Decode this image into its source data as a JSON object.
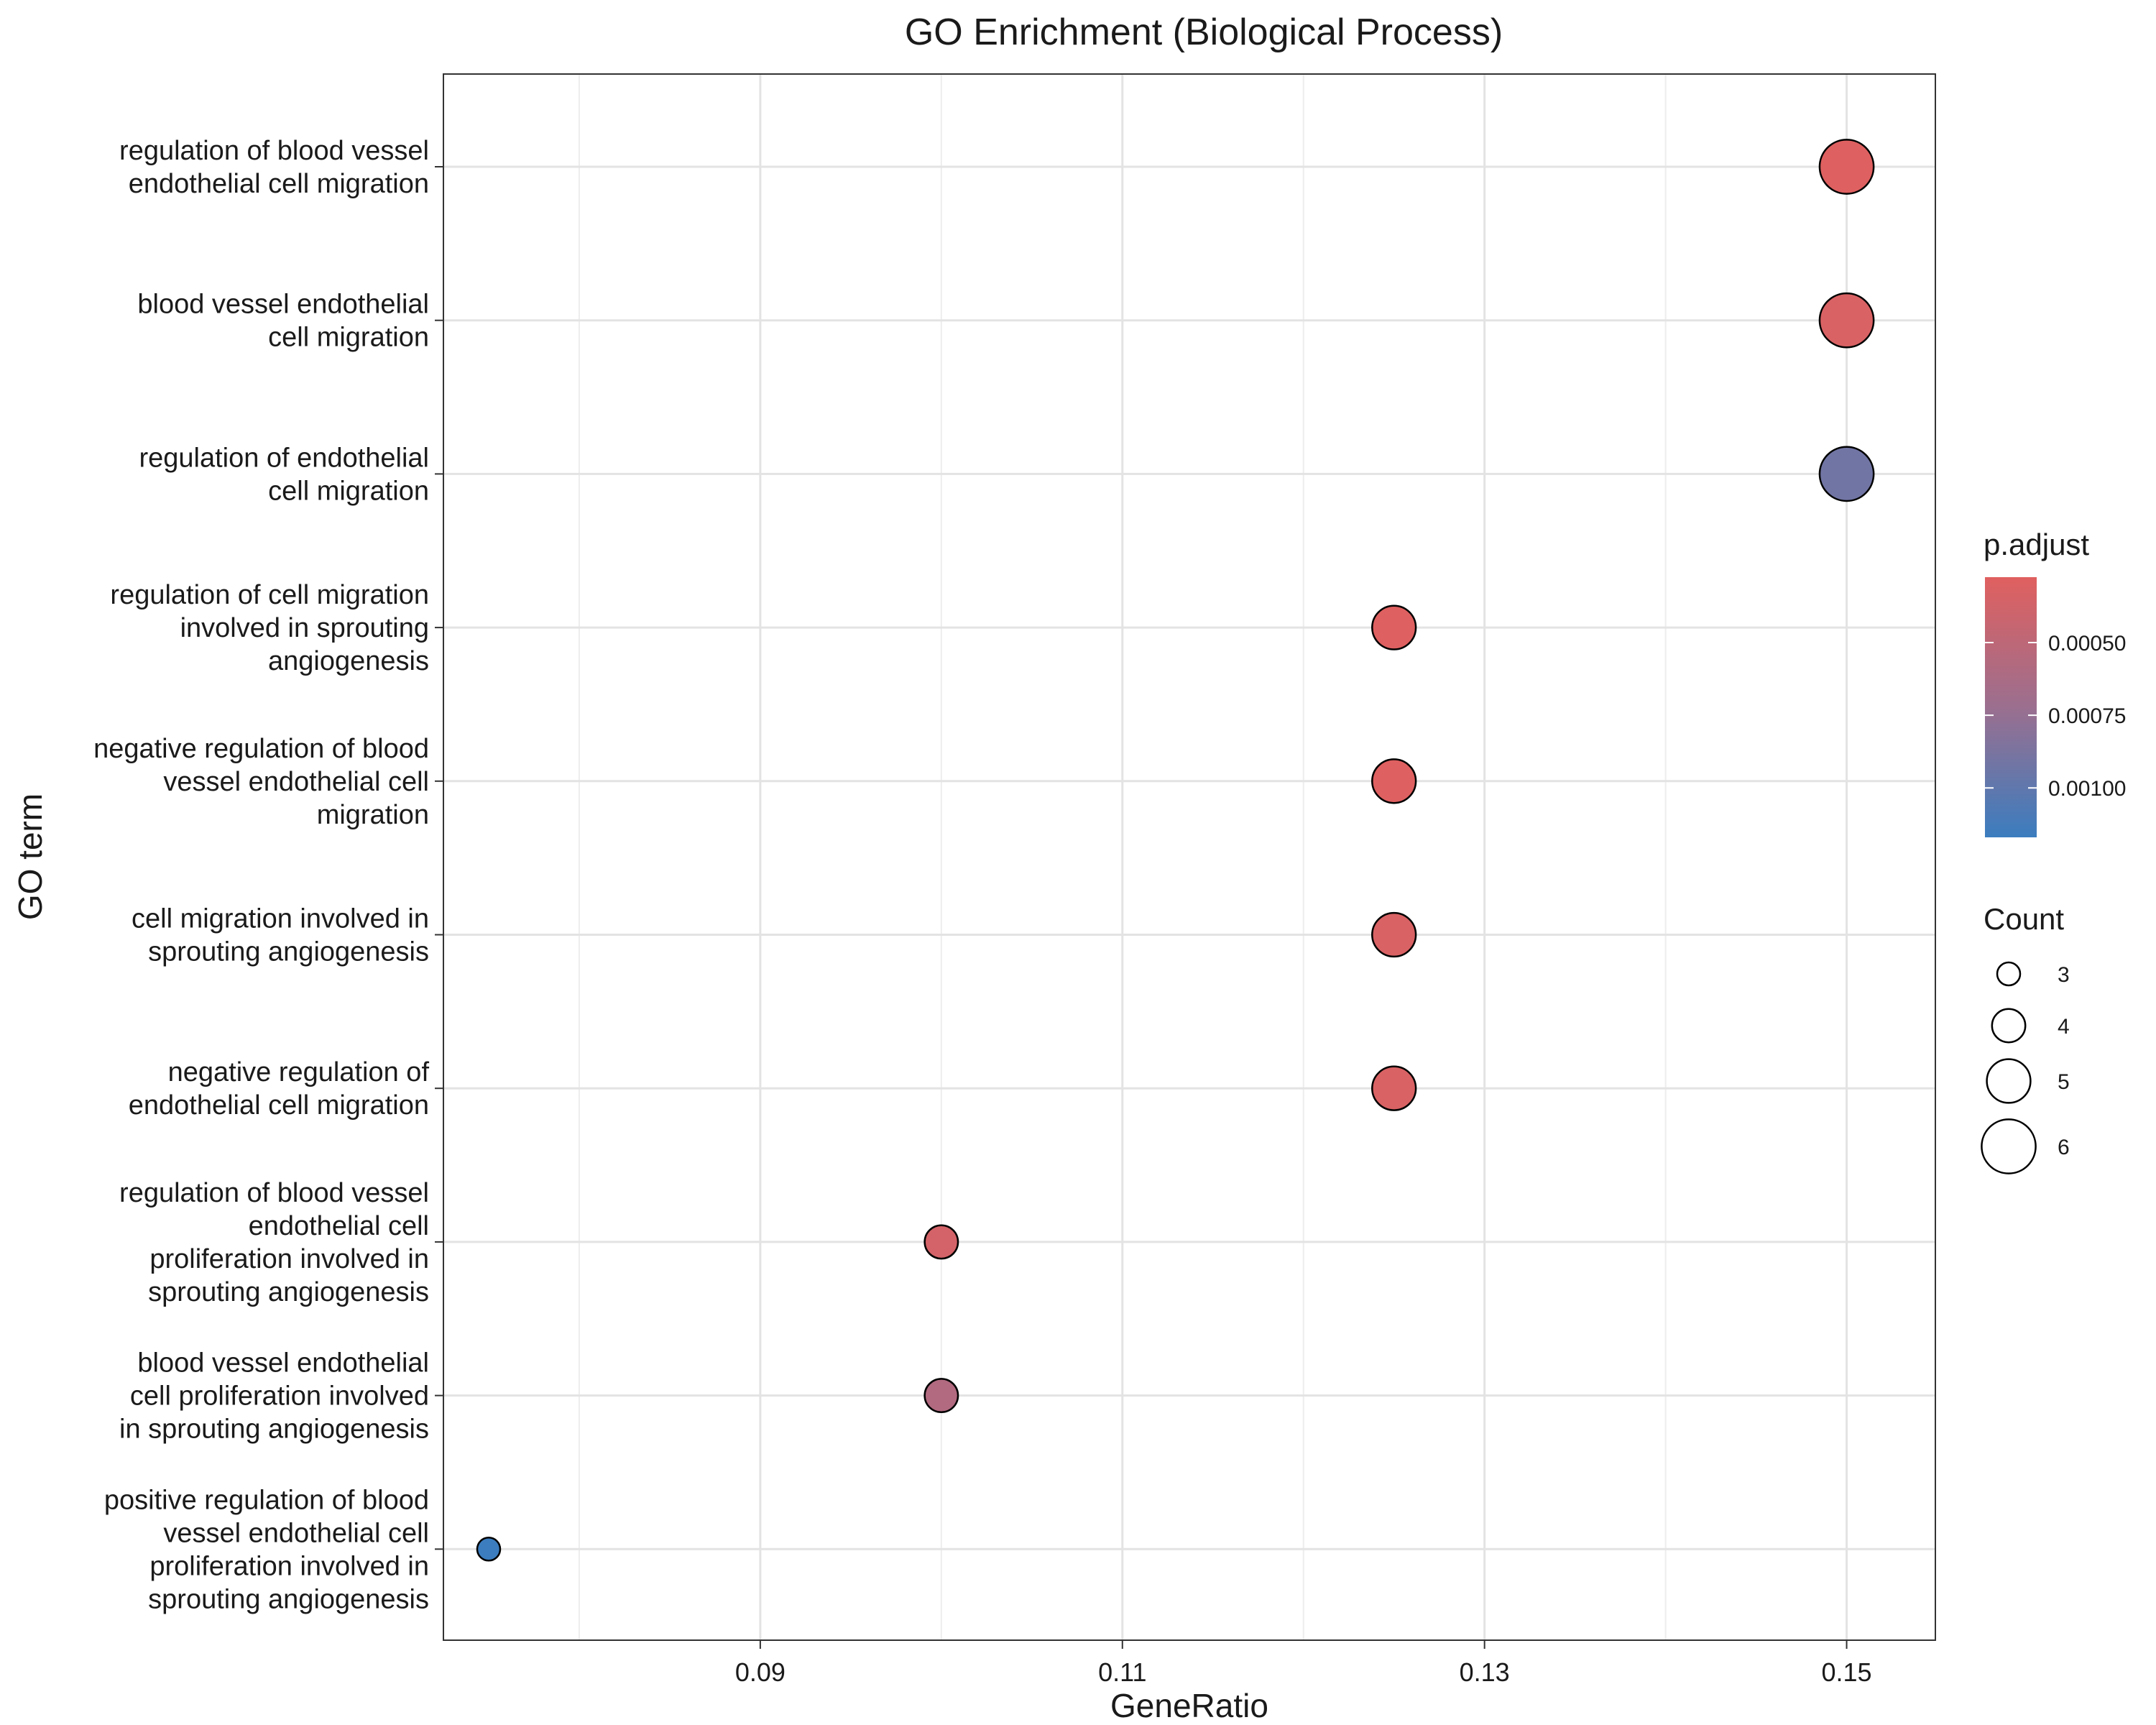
{
  "chart_data": {
    "type": "scatter",
    "title": "GO Enrichment (Biological Process)",
    "xlabel": "GeneRatio",
    "ylabel": "GO term",
    "xlim": [
      0.0725,
      0.1549
    ],
    "x_ticks": [
      "0.09",
      "0.11",
      "0.13",
      "0.15"
    ],
    "x_tick_values": [
      0.09,
      0.11,
      0.13,
      0.15
    ],
    "x_minor_ticks": [
      0.08,
      0.1,
      0.12,
      0.14
    ],
    "grid": true,
    "legend_position": "right",
    "color_scale": {
      "title": "p.adjust",
      "low_color": "#e0605f",
      "high_color": "#3b7dbf",
      "range": [
        0.000275,
        0.00117
      ],
      "tick_labels": [
        "0.00050",
        "0.00075",
        "0.00100"
      ],
      "tick_values": [
        0.0005,
        0.00075,
        0.001
      ]
    },
    "size_scale": {
      "title": "Count",
      "labels": [
        "3",
        "4",
        "5",
        "6"
      ],
      "values": [
        3,
        4,
        5,
        6
      ]
    },
    "points": [
      {
        "term": [
          "regulation of blood vessel",
          "endothelial cell migration"
        ],
        "x": 0.15,
        "count": 6,
        "p_adjust": 0.00028
      },
      {
        "term": [
          "blood vessel endothelial",
          "cell migration"
        ],
        "x": 0.15,
        "count": 6,
        "p_adjust": 0.00032
      },
      {
        "term": [
          "regulation of endothelial",
          "cell migration"
        ],
        "x": 0.15,
        "count": 6,
        "p_adjust": 0.00092
      },
      {
        "term": [
          "regulation of cell migration",
          "involved in sprouting",
          "angiogenesis"
        ],
        "x": 0.125,
        "count": 5,
        "p_adjust": 0.00028
      },
      {
        "term": [
          "negative regulation of blood",
          "vessel endothelial cell",
          "migration"
        ],
        "x": 0.125,
        "count": 5,
        "p_adjust": 0.00028
      },
      {
        "term": [
          "cell migration involved in",
          "sprouting angiogenesis"
        ],
        "x": 0.125,
        "count": 5,
        "p_adjust": 0.00032
      },
      {
        "term": [
          "negative regulation of",
          "endothelial cell migration"
        ],
        "x": 0.125,
        "count": 5,
        "p_adjust": 0.00032
      },
      {
        "term": [
          "regulation of blood vessel",
          "endothelial cell",
          "proliferation involved in",
          "sprouting angiogenesis"
        ],
        "x": 0.1,
        "count": 4,
        "p_adjust": 0.00036
      },
      {
        "term": [
          "blood vessel endothelial",
          "cell proliferation involved",
          "in sprouting angiogenesis"
        ],
        "x": 0.1,
        "count": 4,
        "p_adjust": 0.00058
      },
      {
        "term": [
          "positive regulation of blood",
          "vessel endothelial cell",
          "proliferation involved in",
          "sprouting angiogenesis"
        ],
        "x": 0.075,
        "count": 3,
        "p_adjust": 0.00117
      }
    ]
  }
}
